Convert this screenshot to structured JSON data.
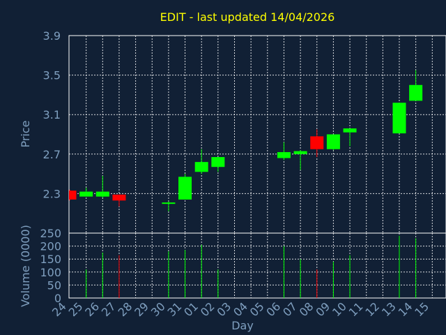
{
  "chart_data": {
    "type": "candlestick",
    "title": "EDIT - last updated 14/04/2026",
    "xlabel": "Day",
    "ylabel": "Price",
    "volume_label": "Volume (0000)",
    "x_ticks": [
      "24",
      "25",
      "26",
      "27",
      "28",
      "29",
      "30",
      "31",
      "01",
      "02",
      "03",
      "04",
      "05",
      "06",
      "07",
      "08",
      "09",
      "10",
      "11",
      "12",
      "13",
      "14",
      "15"
    ],
    "price_ticks": [
      "3.9",
      "3.5",
      "3.1",
      "2.7",
      "2.3"
    ],
    "price_tick_values": [
      3.9,
      3.5,
      3.1,
      2.7,
      2.3
    ],
    "ylim": [
      1.9,
      3.9
    ],
    "volume_ticks": [
      "250",
      "200",
      "150",
      "100",
      "50",
      "0"
    ],
    "volume_tick_values": [
      250,
      200,
      150,
      100,
      50,
      0
    ],
    "volume_ylim": [
      0,
      250
    ],
    "grid": true,
    "colors": {
      "up": "#00ff00",
      "down": "#ff0000",
      "background": "#112035",
      "title": "#ffff00",
      "axis_text": "#7f9fbf",
      "grid": "#ffffff"
    },
    "candles": [
      {
        "day": "24",
        "open": 2.33,
        "high": 2.34,
        "low": 2.23,
        "close": 2.24
      },
      {
        "day": "25",
        "open": 2.27,
        "high": 2.36,
        "low": 2.27,
        "close": 2.32
      },
      {
        "day": "26",
        "open": 2.27,
        "high": 2.48,
        "low": 2.26,
        "close": 2.32
      },
      {
        "day": "27",
        "open": 2.29,
        "high": 2.29,
        "low": 2.17,
        "close": 2.23
      },
      {
        "day": "30",
        "open": 2.2,
        "high": 2.22,
        "low": 2.12,
        "close": 2.21
      },
      {
        "day": "31",
        "open": 2.24,
        "high": 2.5,
        "low": 2.24,
        "close": 2.47
      },
      {
        "day": "01",
        "open": 2.52,
        "high": 2.75,
        "low": 2.5,
        "close": 2.62
      },
      {
        "day": "02",
        "open": 2.57,
        "high": 2.67,
        "low": 2.52,
        "close": 2.67
      },
      {
        "day": "06",
        "open": 2.66,
        "high": 2.82,
        "low": 2.64,
        "close": 2.72
      },
      {
        "day": "07",
        "open": 2.7,
        "high": 2.74,
        "low": 2.54,
        "close": 2.73
      },
      {
        "day": "08",
        "open": 2.88,
        "high": 2.95,
        "low": 2.67,
        "close": 2.75
      },
      {
        "day": "09",
        "open": 2.75,
        "high": 2.9,
        "low": 2.74,
        "close": 2.9
      },
      {
        "day": "10",
        "open": 2.92,
        "high": 2.96,
        "low": 2.78,
        "close": 2.96
      },
      {
        "day": "13",
        "open": 2.91,
        "high": 3.22,
        "low": 2.91,
        "close": 3.22
      },
      {
        "day": "14",
        "open": 3.24,
        "high": 3.55,
        "low": 3.24,
        "close": 3.4
      }
    ],
    "volume": [
      {
        "day": "24",
        "value": 0,
        "direction": "down"
      },
      {
        "day": "25",
        "value": 110,
        "direction": "up"
      },
      {
        "day": "26",
        "value": 175,
        "direction": "up"
      },
      {
        "day": "27",
        "value": 165,
        "direction": "down"
      },
      {
        "day": "30",
        "value": 180,
        "direction": "up"
      },
      {
        "day": "31",
        "value": 185,
        "direction": "up"
      },
      {
        "day": "01",
        "value": 205,
        "direction": "up"
      },
      {
        "day": "02",
        "value": 110,
        "direction": "up"
      },
      {
        "day": "06",
        "value": 200,
        "direction": "up"
      },
      {
        "day": "07",
        "value": 150,
        "direction": "up"
      },
      {
        "day": "08",
        "value": 110,
        "direction": "down"
      },
      {
        "day": "09",
        "value": 140,
        "direction": "up"
      },
      {
        "day": "10",
        "value": 165,
        "direction": "up"
      },
      {
        "day": "13",
        "value": 240,
        "direction": "up"
      },
      {
        "day": "14",
        "value": 230,
        "direction": "up"
      }
    ]
  }
}
